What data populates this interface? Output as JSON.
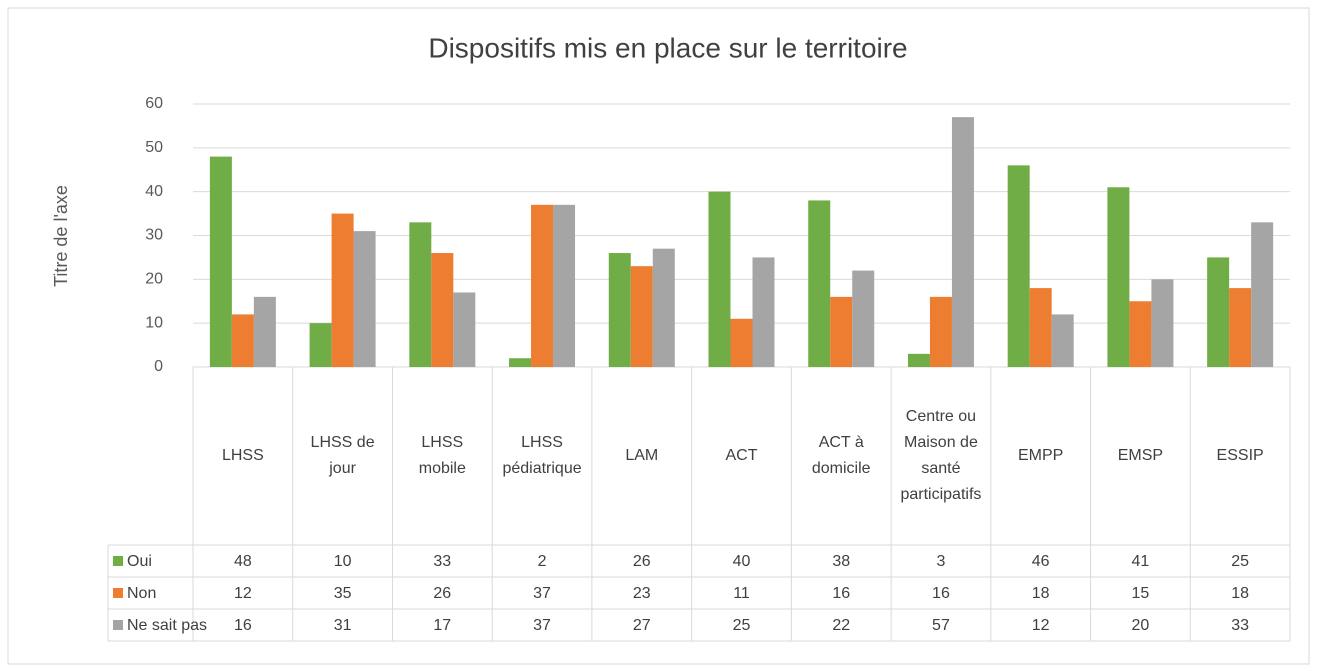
{
  "chart_data": {
    "type": "bar",
    "title": "Dispositifs mis en place sur le territoire",
    "ylabel": "Titre de l'axe",
    "categories": [
      "LHSS",
      "LHSS de jour",
      "LHSS mobile",
      "LHSS pédiatrique",
      "LAM",
      "ACT",
      "ACT à domicile",
      "Centre ou Maison de santé participatifs",
      "EMPP",
      "EMSP",
      "ESSIP"
    ],
    "series": [
      {
        "name": "Oui",
        "color": "#70ad47",
        "values": [
          48,
          10,
          33,
          2,
          26,
          40,
          38,
          3,
          46,
          41,
          25
        ]
      },
      {
        "name": "Non",
        "color": "#ed7d31",
        "values": [
          12,
          35,
          26,
          37,
          23,
          11,
          16,
          16,
          18,
          15,
          18
        ]
      },
      {
        "name": "Ne sait pas",
        "color": "#a5a5a5",
        "values": [
          16,
          31,
          17,
          37,
          27,
          25,
          22,
          57,
          12,
          20,
          33
        ]
      }
    ],
    "ylim": [
      0,
      60
    ],
    "yticks": [
      0,
      10,
      20,
      30,
      40,
      50,
      60
    ],
    "grid": true
  }
}
